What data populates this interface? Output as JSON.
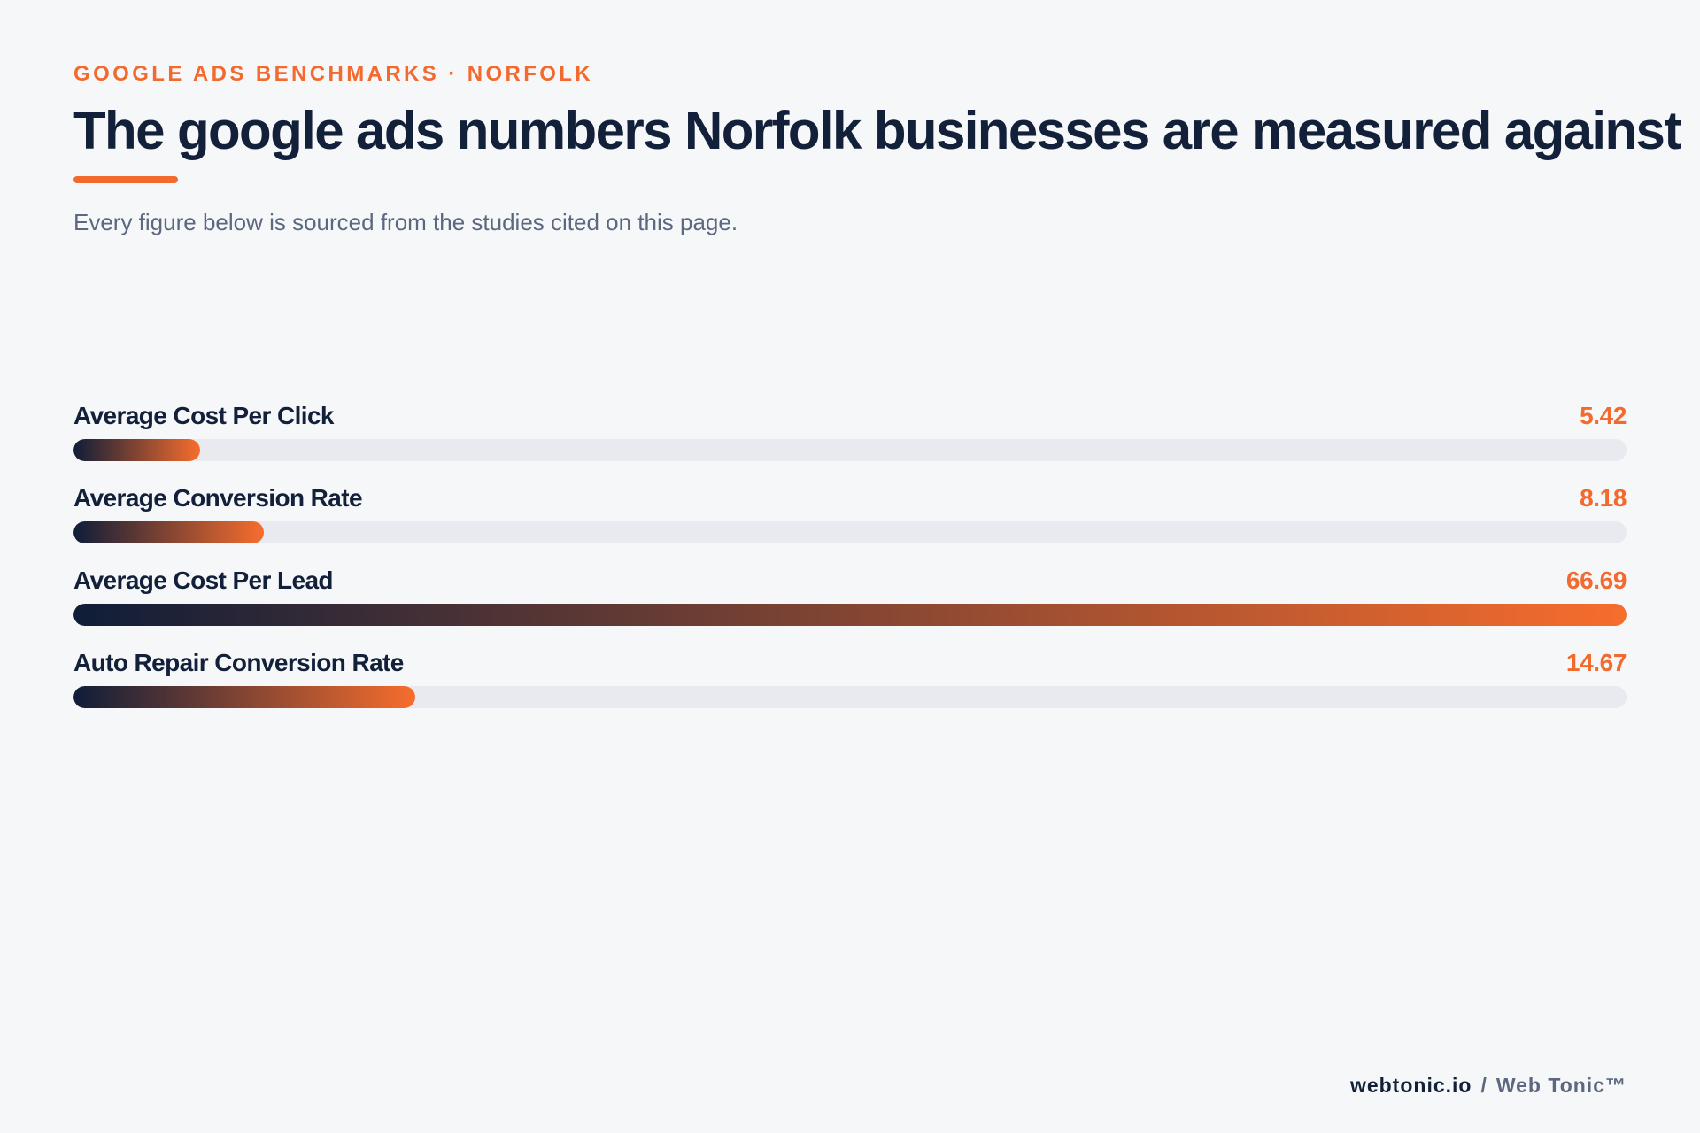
{
  "header": {
    "eyebrow": "GOOGLE ADS BENCHMARKS · NORFOLK",
    "title": "The google ads numbers Norfolk businesses are measured against",
    "subtitle": "Every figure below is sourced from the studies cited on this page."
  },
  "colors": {
    "accent": "#f26a2e",
    "navy": "#13203a",
    "muted": "#5c6880",
    "track": "#e8eaf0",
    "gradient_start": "#0f1d38",
    "gradient_end": "#f76d2d"
  },
  "chart_data": {
    "type": "bar",
    "orientation": "horizontal",
    "categories": [
      "Average Cost Per Click",
      "Average Conversion Rate",
      "Average Cost Per Lead",
      "Auto Repair Conversion Rate"
    ],
    "values": [
      5.42,
      8.18,
      66.69,
      14.67
    ],
    "value_labels": [
      "5.42",
      "8.18",
      "66.69",
      "14.67"
    ],
    "xlim": [
      0,
      66.69
    ],
    "grid": false,
    "legend": "none"
  },
  "footer": {
    "domain": "webtonic.io",
    "separator": "/",
    "brand": "Web Tonic™"
  }
}
